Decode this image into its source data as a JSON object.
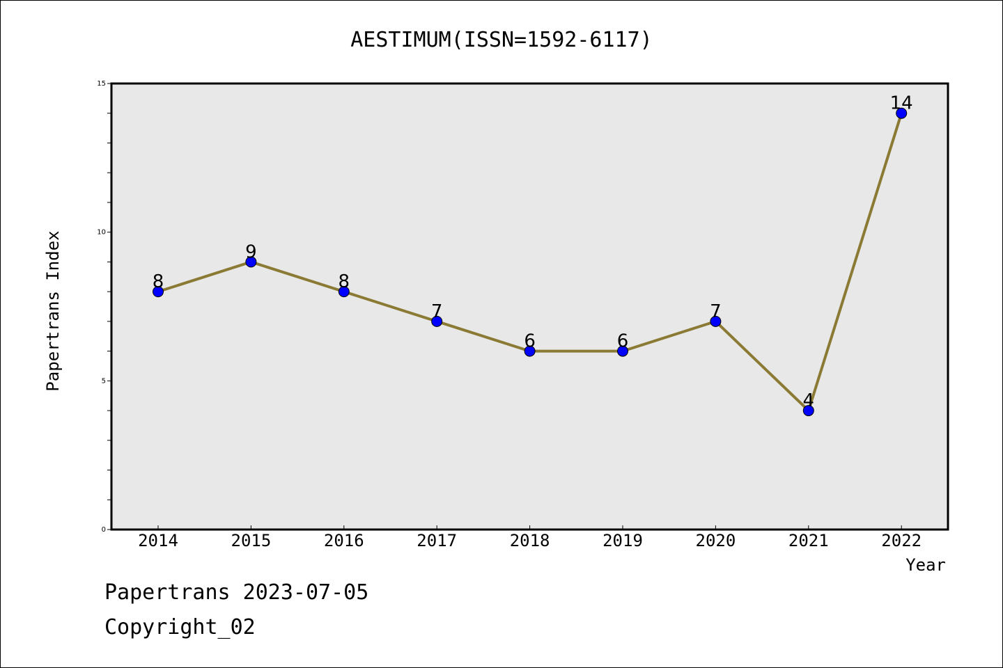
{
  "chart_data": {
    "type": "line",
    "title": "AESTIMUM(ISSN=1592-6117)",
    "xlabel": "Year",
    "ylabel": "Papertrans Index",
    "categories": [
      "2014",
      "2015",
      "2016",
      "2017",
      "2018",
      "2019",
      "2020",
      "2021",
      "2022"
    ],
    "values": [
      8,
      9,
      8,
      7,
      6,
      6,
      7,
      4,
      14
    ],
    "ylim": [
      0,
      15
    ],
    "yticks": [
      0,
      5,
      10,
      15
    ],
    "grid": false,
    "line_color": "#8b7a34",
    "marker_color": "#0000ff",
    "plot_background": "#e8e8e8"
  },
  "footer": {
    "line1": "Papertrans 2023-07-05",
    "line2": "Copyright_02"
  }
}
